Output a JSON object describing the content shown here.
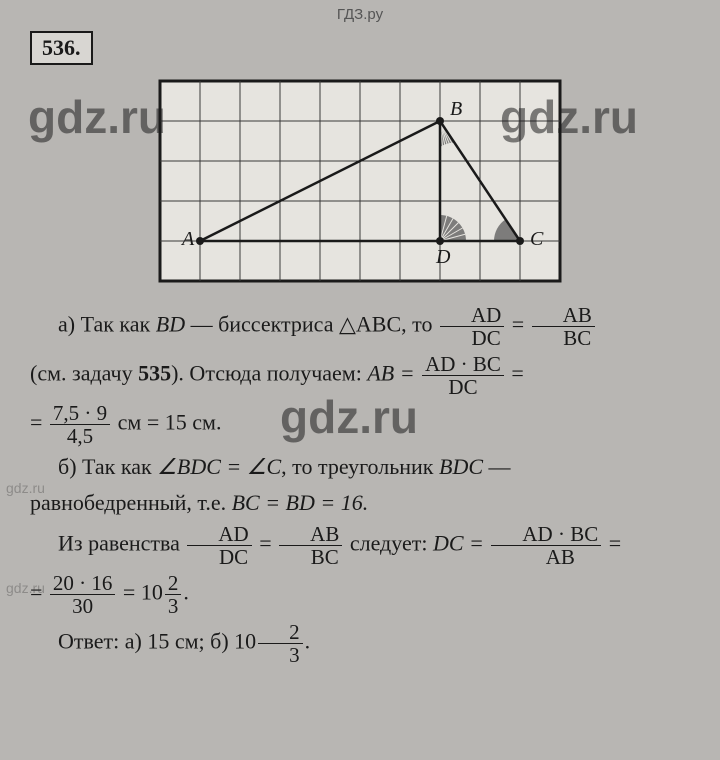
{
  "header": "ГДЗ.ру",
  "problem_number": "536.",
  "watermark_text": "gdz.ru",
  "figure": {
    "grid": {
      "cols": 10,
      "rows": 5,
      "cell": 40,
      "stroke": "#3a3a3a",
      "fill": "#e6e4df",
      "border": "#1a1a1a"
    },
    "points": {
      "A": {
        "x": 1,
        "y": 4,
        "label_dx": -18,
        "label_dy": 4
      },
      "B": {
        "x": 7,
        "y": 1,
        "label_dx": 10,
        "label_dy": -6
      },
      "C": {
        "x": 9,
        "y": 4,
        "label_dx": 10,
        "label_dy": 4
      },
      "D": {
        "x": 7,
        "y": 4,
        "label_dx": -4,
        "label_dy": 22
      }
    },
    "angle_fill": "#6a6a6a"
  },
  "text": {
    "a_1a": "а) Так как ",
    "a_1b": " — биссектриса ",
    "a_1c": ", то ",
    "BD": "BD",
    "tri": "△ABC",
    "frac1_num": "AD",
    "frac1_den": "DC",
    "eq": " = ",
    "frac2_num": "AB",
    "frac2_den": "BC",
    "a_2a": "(см. задачу ",
    "a_2b": "). Отсюда получаем: ",
    "ref": "535",
    "ABeq": "AB = ",
    "frac3_num": "AD · BC",
    "frac3_den": "DC",
    "a_3a": "= ",
    "frac4_num": "7,5 · 9",
    "frac4_den": "4,5",
    "a_3b": " см = 15 см.",
    "b_1a": "б) Так как ",
    "ang": "∠BDC = ∠C",
    "b_1b": ", то треугольник ",
    "BDC": "BDC",
    "b_1c": " —",
    "b_2": "равнобедренный, т.е. ",
    "bceq": "BC = BD = 16.",
    "b_3a": "Из равенства ",
    "b_3b": " следует: ",
    "DCeq": "DC = ",
    "frac5_num": "AD · BC",
    "frac5_den": "AB",
    "b_4a": "= ",
    "frac6_num": "20 · 16",
    "frac6_den": "30",
    "b_4b": " = 10",
    "mix_num": "2",
    "mix_den": "3",
    "dot": ".",
    "ans_a": "Ответ: а) 15 см; б) 10"
  }
}
